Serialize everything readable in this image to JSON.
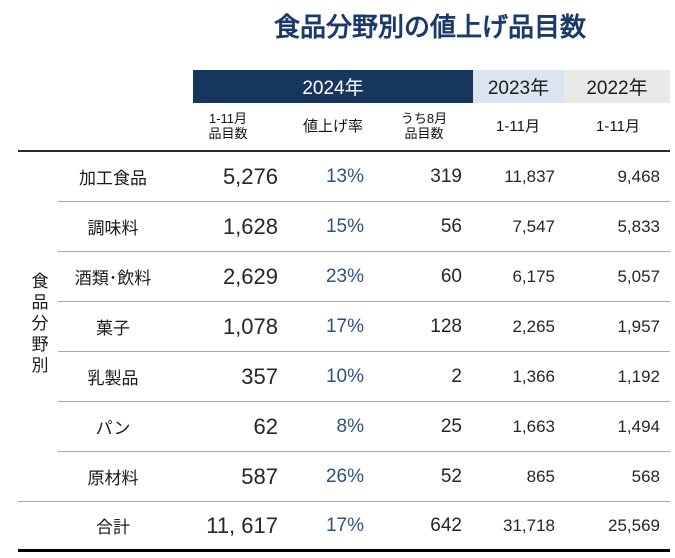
{
  "title": "食品分野別の値上げ品目数",
  "colors": {
    "navy": "#17365d",
    "title_navy": "#1b3a6b",
    "band_2023_bg": "#dbe5f1",
    "band_2022_bg": "#e9e9e7",
    "percent_text": "#2e5180",
    "number_text": "#262626"
  },
  "header": {
    "y2024": "2024年",
    "y2023": "2023年",
    "y2022": "2022年",
    "sub_count": "1-11月\n品目数",
    "sub_rate": "値上げ率",
    "sub_aug": "うち8月\n品目数",
    "sub_2023": "1-11月",
    "sub_2022": "1-11月"
  },
  "group_label": "食品分野別",
  "table": {
    "rows": [
      {
        "label": "加工食品",
        "count_2024": "5,276",
        "rate": "13%",
        "aug": "319",
        "y2023": "11,837",
        "y2022": "9,468"
      },
      {
        "label": "調味料",
        "count_2024": "1,628",
        "rate": "15%",
        "aug": "56",
        "y2023": "7,547",
        "y2022": "5,833"
      },
      {
        "label": "酒類･飲料",
        "count_2024": "2,629",
        "rate": "23%",
        "aug": "60",
        "y2023": "6,175",
        "y2022": "5,057"
      },
      {
        "label": "菓子",
        "count_2024": "1,078",
        "rate": "17%",
        "aug": "128",
        "y2023": "2,265",
        "y2022": "1,957"
      },
      {
        "label": "乳製品",
        "count_2024": "357",
        "rate": "10%",
        "aug": "2",
        "y2023": "1,366",
        "y2022": "1,192"
      },
      {
        "label": "パン",
        "count_2024": "62",
        "rate": "8%",
        "aug": "25",
        "y2023": "1,663",
        "y2022": "1,494"
      },
      {
        "label": "原材料",
        "count_2024": "587",
        "rate": "26%",
        "aug": "52",
        "y2023": "865",
        "y2022": "568"
      }
    ],
    "total": {
      "label": "合計",
      "count_2024": "11, 617",
      "rate": "17%",
      "aug": "642",
      "y2023": "31,718",
      "y2022": "25,569"
    }
  },
  "chart_data": {
    "type": "table",
    "title": "食品分野別の値上げ品目数",
    "columns": [
      "食品分野",
      "2024年 1-11月品目数",
      "2024年 値上げ率",
      "2024年 うち8月品目数",
      "2023年 1-11月",
      "2022年 1-11月"
    ],
    "rows": [
      [
        "加工食品",
        5276,
        "13%",
        319,
        11837,
        9468
      ],
      [
        "調味料",
        1628,
        "15%",
        56,
        7547,
        5833
      ],
      [
        "酒類･飲料",
        2629,
        "23%",
        60,
        6175,
        5057
      ],
      [
        "菓子",
        1078,
        "17%",
        128,
        2265,
        1957
      ],
      [
        "乳製品",
        357,
        "10%",
        2,
        1366,
        1192
      ],
      [
        "パン",
        62,
        "8%",
        25,
        1663,
        1494
      ],
      [
        "原材料",
        587,
        "26%",
        52,
        865,
        568
      ],
      [
        "合計",
        11617,
        "17%",
        642,
        31718,
        25569
      ]
    ],
    "notes": "値上げ率(rate)列は青色表示、2024年帯は紺色、2023年帯は薄青、2022年帯は薄灰色"
  }
}
